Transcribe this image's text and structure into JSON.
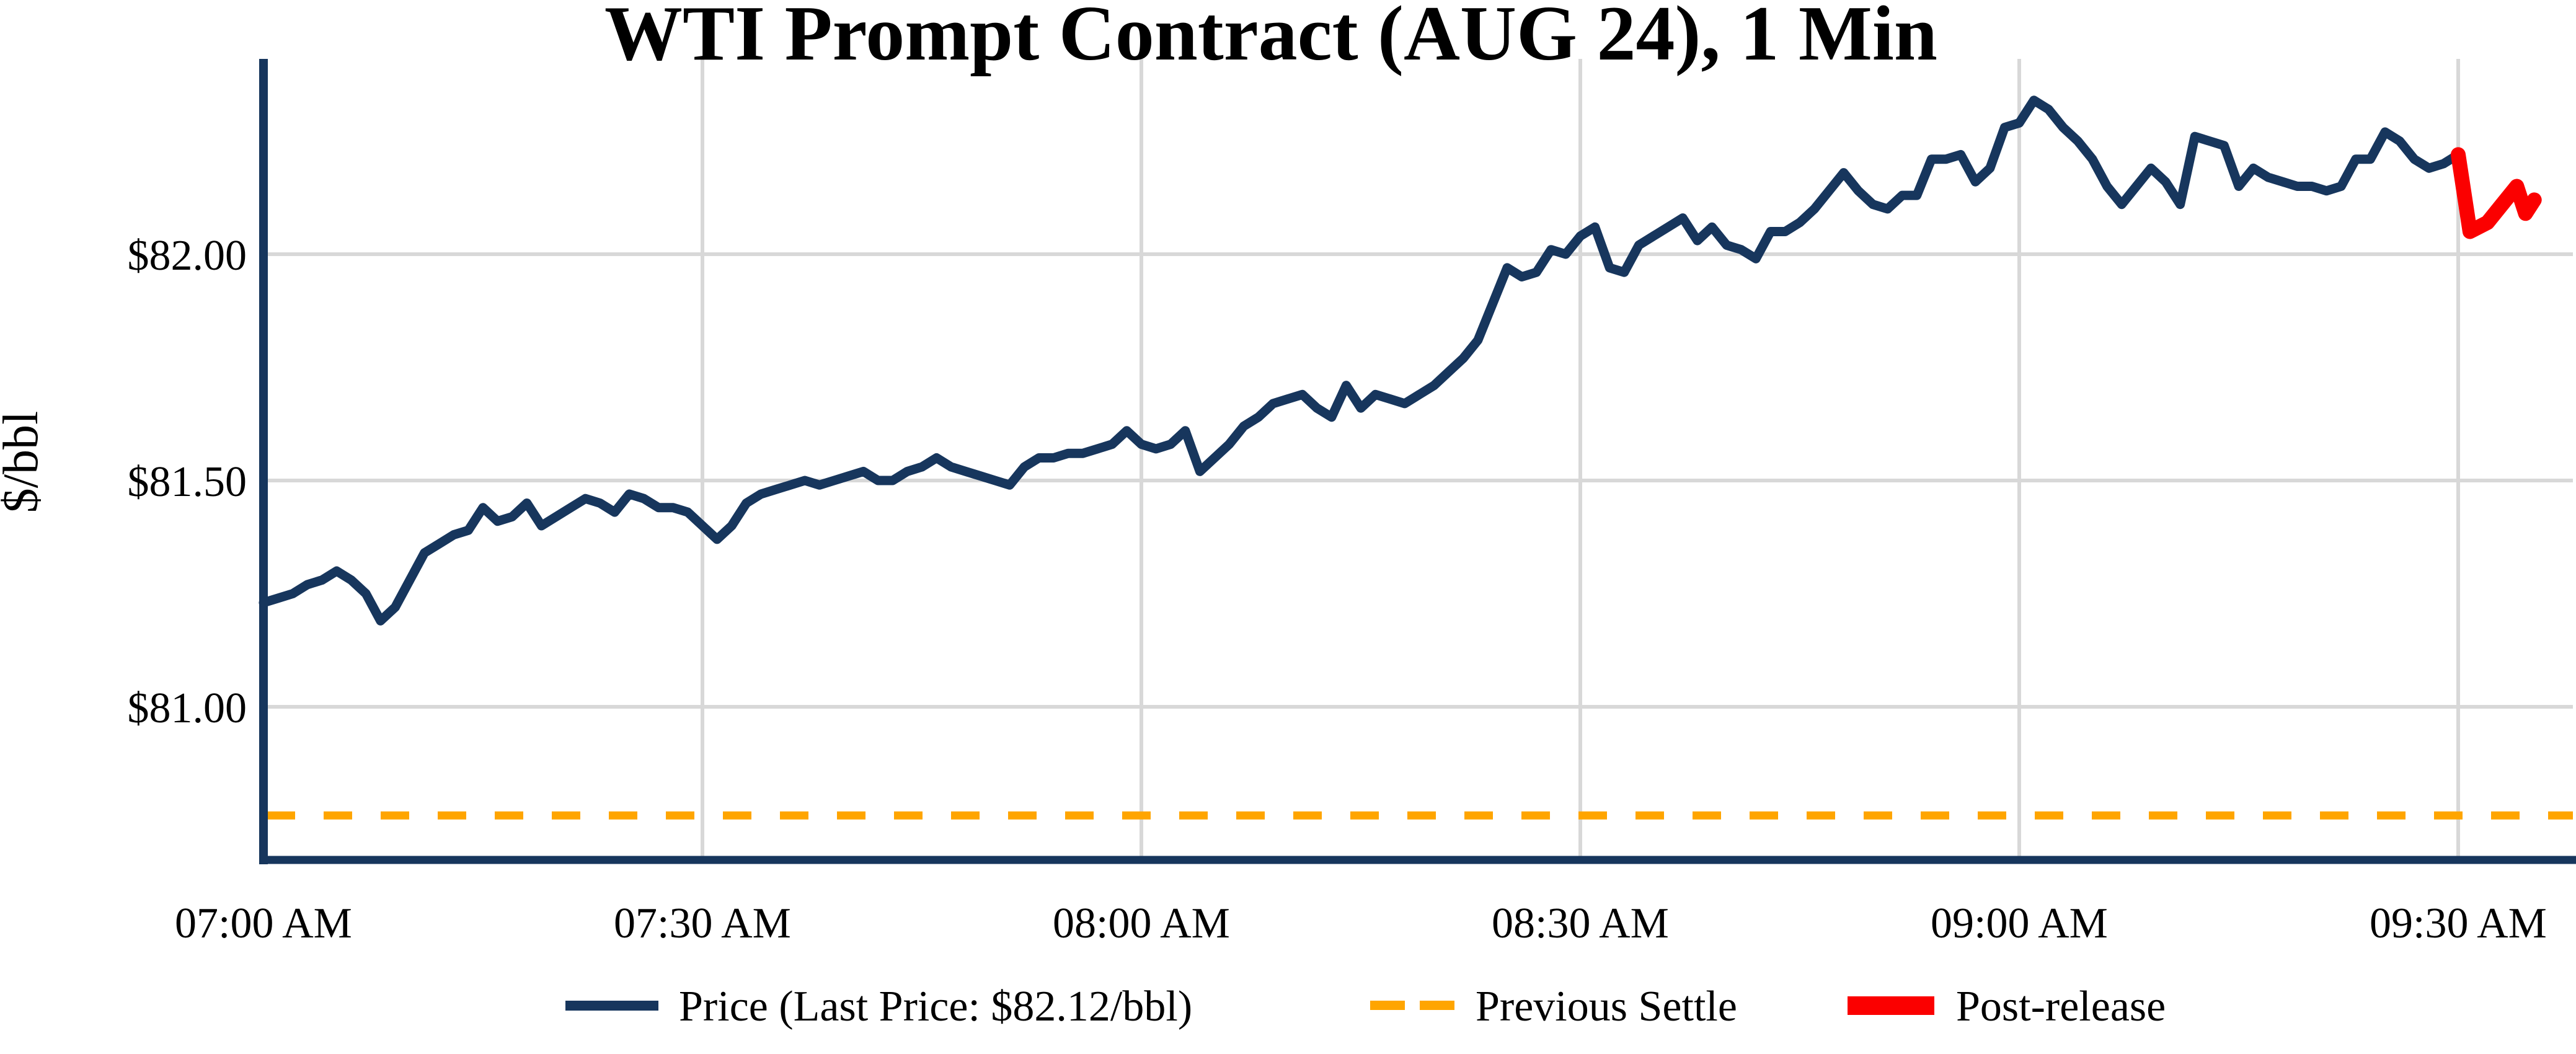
{
  "title": "WTI Prompt Contract (AUG 24), 1 Min",
  "axes": {
    "y_label": "$/bbl",
    "y_ticks": [
      {
        "label": "$82.00",
        "value": 82.0
      },
      {
        "label": "$81.50",
        "value": 81.5
      },
      {
        "label": "$81.00",
        "value": 81.0
      }
    ],
    "x_ticks": [
      {
        "label": "07:00 AM",
        "minute": 0
      },
      {
        "label": "07:30 AM",
        "minute": 30
      },
      {
        "label": "08:00 AM",
        "minute": 60
      },
      {
        "label": "08:30 AM",
        "minute": 90
      },
      {
        "label": "09:00 AM",
        "minute": 120
      },
      {
        "label": "09:30 AM",
        "minute": 150
      }
    ]
  },
  "legend": {
    "price_label": "Price (Last Price: $82.12/bbl)",
    "settle_label": "Previous Settle",
    "post_label": "Post-release"
  },
  "colors": {
    "price_line": "#17365D",
    "settle_line": "#FFA500",
    "post_line": "#FB0000",
    "gridline": "#D8D8D8"
  },
  "chart_data": {
    "type": "line",
    "title": "WTI Prompt Contract (AUG 24), 1 Min",
    "ylabel": "$/bbl",
    "xlabel": "",
    "x_unit": "minutes after 07:00 AM",
    "ylim": [
      80.66,
      82.43
    ],
    "xlim_minutes": [
      0,
      157
    ],
    "grid": true,
    "legend_position": "bottom",
    "last_price": 82.12,
    "previous_settle": 80.76,
    "series": [
      {
        "name": "Price (Last Price: $82.12/bbl)",
        "type": "line",
        "points": [
          [
            0,
            81.23
          ],
          [
            1,
            81.24
          ],
          [
            2,
            81.25
          ],
          [
            3,
            81.27
          ],
          [
            4,
            81.28
          ],
          [
            5,
            81.3
          ],
          [
            6,
            81.28
          ],
          [
            7,
            81.25
          ],
          [
            8,
            81.19
          ],
          [
            9,
            81.22
          ],
          [
            10,
            81.28
          ],
          [
            11,
            81.34
          ],
          [
            12,
            81.36
          ],
          [
            13,
            81.38
          ],
          [
            14,
            81.39
          ],
          [
            15,
            81.44
          ],
          [
            16,
            81.41
          ],
          [
            17,
            81.42
          ],
          [
            18,
            81.45
          ],
          [
            19,
            81.4
          ],
          [
            20,
            81.42
          ],
          [
            21,
            81.44
          ],
          [
            22,
            81.46
          ],
          [
            23,
            81.45
          ],
          [
            24,
            81.43
          ],
          [
            25,
            81.47
          ],
          [
            26,
            81.46
          ],
          [
            27,
            81.44
          ],
          [
            28,
            81.44
          ],
          [
            29,
            81.43
          ],
          [
            30,
            81.4
          ],
          [
            31,
            81.37
          ],
          [
            32,
            81.4
          ],
          [
            33,
            81.45
          ],
          [
            34,
            81.47
          ],
          [
            35,
            81.48
          ],
          [
            36,
            81.49
          ],
          [
            37,
            81.5
          ],
          [
            38,
            81.49
          ],
          [
            39,
            81.5
          ],
          [
            40,
            81.51
          ],
          [
            41,
            81.52
          ],
          [
            42,
            81.5
          ],
          [
            43,
            81.5
          ],
          [
            44,
            81.52
          ],
          [
            45,
            81.53
          ],
          [
            46,
            81.55
          ],
          [
            47,
            81.53
          ],
          [
            48,
            81.52
          ],
          [
            49,
            81.51
          ],
          [
            50,
            81.5
          ],
          [
            51,
            81.49
          ],
          [
            52,
            81.53
          ],
          [
            53,
            81.55
          ],
          [
            54,
            81.55
          ],
          [
            55,
            81.56
          ],
          [
            56,
            81.56
          ],
          [
            57,
            81.57
          ],
          [
            58,
            81.58
          ],
          [
            59,
            81.61
          ],
          [
            60,
            81.58
          ],
          [
            61,
            81.57
          ],
          [
            62,
            81.58
          ],
          [
            63,
            81.61
          ],
          [
            64,
            81.52
          ],
          [
            65,
            81.55
          ],
          [
            66,
            81.58
          ],
          [
            67,
            81.62
          ],
          [
            68,
            81.64
          ],
          [
            69,
            81.67
          ],
          [
            70,
            81.68
          ],
          [
            71,
            81.69
          ],
          [
            72,
            81.66
          ],
          [
            73,
            81.64
          ],
          [
            74,
            81.71
          ],
          [
            75,
            81.66
          ],
          [
            76,
            81.69
          ],
          [
            77,
            81.68
          ],
          [
            78,
            81.67
          ],
          [
            79,
            81.69
          ],
          [
            80,
            81.71
          ],
          [
            81,
            81.74
          ],
          [
            82,
            81.77
          ],
          [
            83,
            81.81
          ],
          [
            84,
            81.89
          ],
          [
            85,
            81.97
          ],
          [
            86,
            81.95
          ],
          [
            87,
            81.96
          ],
          [
            88,
            82.01
          ],
          [
            89,
            82.0
          ],
          [
            90,
            82.04
          ],
          [
            91,
            82.06
          ],
          [
            92,
            81.97
          ],
          [
            93,
            81.96
          ],
          [
            94,
            82.02
          ],
          [
            95,
            82.04
          ],
          [
            96,
            82.06
          ],
          [
            97,
            82.08
          ],
          [
            98,
            82.03
          ],
          [
            99,
            82.06
          ],
          [
            100,
            82.02
          ],
          [
            101,
            82.01
          ],
          [
            102,
            81.99
          ],
          [
            103,
            82.05
          ],
          [
            104,
            82.05
          ],
          [
            105,
            82.07
          ],
          [
            106,
            82.1
          ],
          [
            107,
            82.14
          ],
          [
            108,
            82.18
          ],
          [
            109,
            82.14
          ],
          [
            110,
            82.11
          ],
          [
            111,
            82.1
          ],
          [
            112,
            82.13
          ],
          [
            113,
            82.13
          ],
          [
            114,
            82.21
          ],
          [
            115,
            82.21
          ],
          [
            116,
            82.22
          ],
          [
            117,
            82.16
          ],
          [
            118,
            82.19
          ],
          [
            119,
            82.28
          ],
          [
            120,
            82.29
          ],
          [
            121,
            82.34
          ],
          [
            122,
            82.32
          ],
          [
            123,
            82.28
          ],
          [
            124,
            82.25
          ],
          [
            125,
            82.21
          ],
          [
            126,
            82.15
          ],
          [
            127,
            82.11
          ],
          [
            128,
            82.15
          ],
          [
            129,
            82.19
          ],
          [
            130,
            82.16
          ],
          [
            131,
            82.11
          ],
          [
            132,
            82.26
          ],
          [
            133,
            82.25
          ],
          [
            134,
            82.24
          ],
          [
            135,
            82.15
          ],
          [
            136,
            82.19
          ],
          [
            137,
            82.17
          ],
          [
            138,
            82.16
          ],
          [
            139,
            82.15
          ],
          [
            140,
            82.15
          ],
          [
            141,
            82.14
          ],
          [
            142,
            82.15
          ],
          [
            143,
            82.21
          ],
          [
            144,
            82.21
          ],
          [
            145,
            82.27
          ],
          [
            146,
            82.25
          ],
          [
            147,
            82.21
          ],
          [
            148,
            82.19
          ],
          [
            149,
            82.2
          ],
          [
            150,
            82.22
          ]
        ]
      },
      {
        "name": "Post-release",
        "type": "line",
        "points": [
          [
            150,
            82.22
          ],
          [
            150.8,
            82.05
          ],
          [
            152,
            82.07
          ],
          [
            153,
            82.11
          ],
          [
            154,
            82.15
          ],
          [
            154.6,
            82.09
          ],
          [
            155.2,
            82.12
          ]
        ]
      },
      {
        "name": "Previous Settle",
        "type": "hline",
        "style": "dashed",
        "value": 80.76
      }
    ]
  }
}
